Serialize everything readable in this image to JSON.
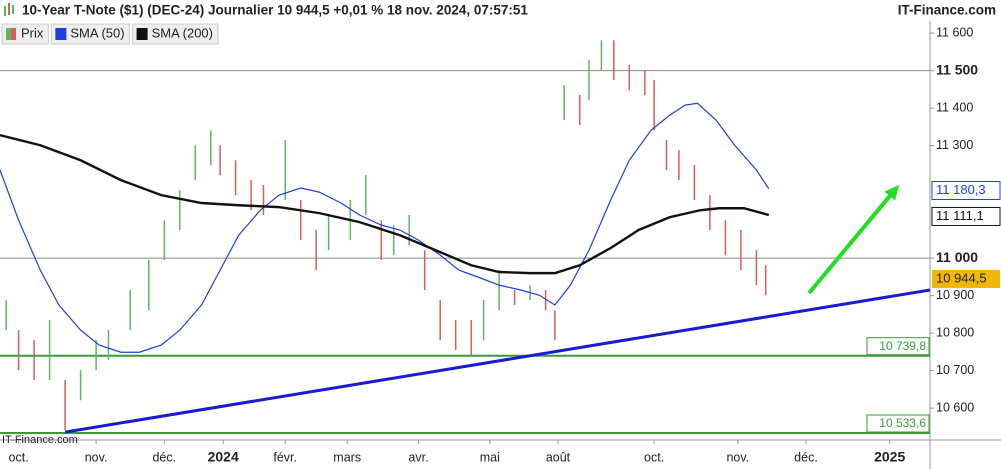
{
  "chart_data": {
    "type": "price",
    "title": "10-Year T-Note ($1) (DEC-24) Journalier 10 944,5 +0,01 % 18 nov. 2024, 07:57:51",
    "source": "IT-Finance.com",
    "watermark": "IT-Finance.com",
    "xlim": [
      0,
      300
    ],
    "ylim": [
      10515,
      11635
    ],
    "xticks": [
      {
        "value": 6,
        "label": "oct."
      },
      {
        "value": 31,
        "label": "nov."
      },
      {
        "value": 53,
        "label": "déc."
      },
      {
        "value": 72,
        "label": "2024",
        "bold": true
      },
      {
        "value": 92,
        "label": "févr."
      },
      {
        "value": 112,
        "label": "mars"
      },
      {
        "value": 135,
        "label": "avr."
      },
      {
        "value": 158,
        "label": "mai"
      },
      {
        "value": 180,
        "label": "août"
      },
      {
        "value": 211,
        "label": "oct."
      },
      {
        "value": 238,
        "label": "nov."
      },
      {
        "value": 260,
        "label": "déc."
      },
      {
        "value": 287,
        "label": "2025",
        "bold": true
      }
    ],
    "yticks": [
      {
        "value": 10600,
        "label": "10 600"
      },
      {
        "value": 10700,
        "label": "10 700"
      },
      {
        "value": 10800,
        "label": "10 800"
      },
      {
        "value": 10900,
        "label": "10 900"
      },
      {
        "value": 11000,
        "label": "11 000",
        "bold": true
      },
      {
        "value": 11300,
        "label": "11 300"
      },
      {
        "value": 11400,
        "label": "11 400"
      },
      {
        "value": 11500,
        "label": "11 500",
        "bold": true
      },
      {
        "value": 11600,
        "label": "11 600"
      }
    ],
    "levels": [
      {
        "value": 11500,
        "color": "#8a8a8a"
      },
      {
        "value": 11000,
        "color": "#8a8a8a"
      }
    ],
    "supports": [
      {
        "value": 10739.8,
        "label": "10 739,8",
        "color": "#3a9a3a"
      },
      {
        "value": 10533.6,
        "label": "10 533,6",
        "color": "#3a9a3a"
      }
    ],
    "last_price": {
      "value": 10944.5,
      "label": "10 944,5",
      "color": "#f2b705"
    },
    "series": [
      {
        "name": "Prix",
        "type": "hilo",
        "up_color": "#5cb85c",
        "down_color": "#e05a5a",
        "x": [
          2,
          6,
          11,
          16,
          21,
          26,
          31,
          35,
          42,
          48,
          53,
          58,
          63,
          68,
          71,
          76,
          81,
          85,
          92,
          97,
          102,
          106,
          113,
          118,
          123,
          127,
          132,
          137,
          142,
          147,
          152,
          156,
          161,
          166,
          171,
          176,
          179,
          182,
          187,
          190,
          194,
          198,
          203,
          208,
          211,
          215,
          219,
          224,
          229,
          234,
          239,
          244,
          247
        ],
        "high": [
          10888,
          10808,
          10781,
          10835,
          10675,
          10701,
          10781,
          10808,
          10915,
          10995,
          11101,
          11181,
          11301,
          11341,
          11301,
          11261,
          11208,
          11195,
          11315,
          11155,
          11075,
          11115,
          11155,
          11221,
          11101,
          11088,
          11115,
          11021,
          10888,
          10835,
          10835,
          10888,
          10968,
          10915,
          10928,
          10915,
          10861,
          11461,
          11435,
          11528,
          11581,
          11581,
          11515,
          11501,
          11475,
          11315,
          11288,
          11248,
          11168,
          11101,
          11075,
          11021,
          10981
        ],
        "low": [
          10808,
          10701,
          10675,
          10675,
          10541,
          10621,
          10701,
          10728,
          10808,
          10861,
          10995,
          11075,
          11208,
          11248,
          11221,
          11168,
          11128,
          11115,
          11155,
          11048,
          10968,
          11021,
          11048,
          11115,
          10995,
          11008,
          11035,
          10915,
          10781,
          10755,
          10741,
          10781,
          10861,
          10875,
          10888,
          10861,
          10781,
          11368,
          11355,
          11421,
          11501,
          11475,
          11448,
          11435,
          11341,
          11235,
          11208,
          11155,
          11075,
          11008,
          10968,
          10928,
          10901
        ]
      },
      {
        "name": "SMA (50)",
        "type": "line",
        "color": "#1f3fe0",
        "x": [
          0,
          6,
          13,
          19,
          26,
          32,
          39,
          45,
          52,
          58,
          65,
          71,
          77,
          84,
          90,
          97,
          103,
          110,
          116,
          123,
          129,
          135,
          142,
          148,
          155,
          161,
          168,
          174,
          179,
          184,
          190,
          197,
          203,
          210,
          216,
          221,
          225,
          231,
          237,
          244,
          248
        ],
        "values": [
          11235,
          11101,
          10968,
          10875,
          10808,
          10768,
          10749,
          10749,
          10768,
          10808,
          10875,
          10968,
          11061,
          11128,
          11168,
          11187,
          11176,
          11147,
          11115,
          11088,
          11075,
          11048,
          11008,
          10968,
          10947,
          10928,
          10915,
          10901,
          10875,
          10928,
          11021,
          11155,
          11261,
          11341,
          11381,
          11408,
          11413,
          11368,
          11301,
          11235,
          11185
        ],
        "current": {
          "value": 11180.3,
          "label": "11 180,3"
        }
      },
      {
        "name": "SMA (200)",
        "type": "line",
        "color": "#111111",
        "x": [
          0,
          13,
          26,
          39,
          52,
          65,
          77,
          90,
          103,
          116,
          129,
          142,
          152,
          161,
          171,
          179,
          187,
          197,
          206,
          216,
          226,
          232,
          240,
          248
        ],
        "values": [
          11328,
          11301,
          11261,
          11208,
          11168,
          11147,
          11141,
          11136,
          11120,
          11096,
          11061,
          11016,
          10981,
          10963,
          10960,
          10960,
          10981,
          11027,
          11075,
          11109,
          11128,
          11133,
          11133,
          11115
        ],
        "current": {
          "value": 11111.1,
          "label": "11 111,1"
        }
      }
    ],
    "trendline": {
      "color": "#1a1ad0",
      "x": [
        21,
        300
      ],
      "y": [
        10536,
        10915
      ]
    },
    "arrow": {
      "color": "#22dd22",
      "x": [
        261,
        290
      ],
      "y": [
        10907,
        11195
      ]
    }
  }
}
